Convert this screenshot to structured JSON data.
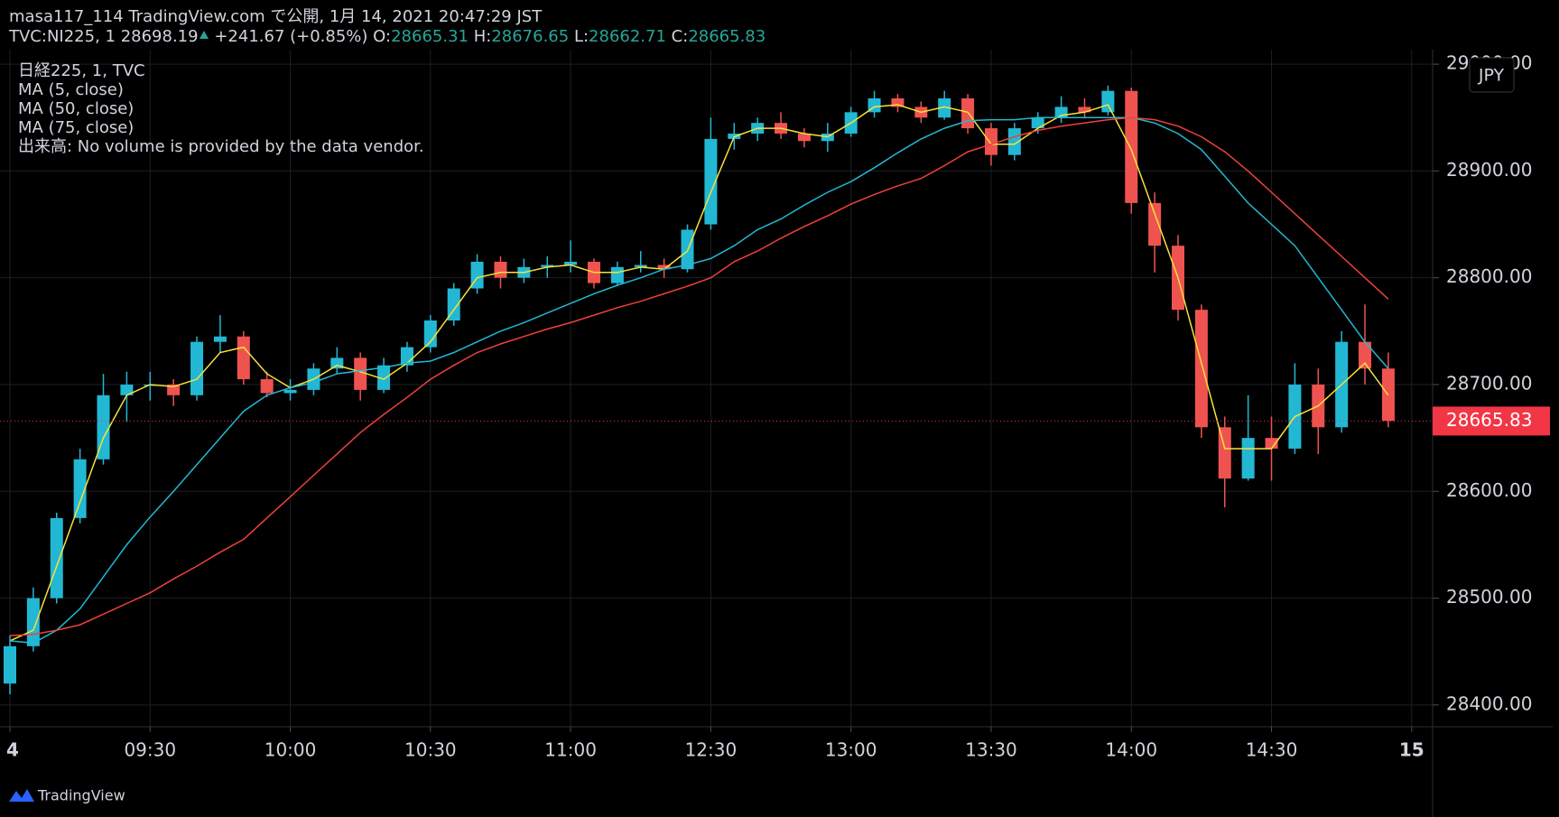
{
  "chart_data": {
    "type": "candlestick",
    "header": {
      "line1": "masa117_114 TradingView.com で公開, 1月 14, 2021 20:47:29 JST",
      "symbol": "TVC:NI225, 1",
      "price": 28698.19,
      "change": "+241.67 (+0.85%)",
      "ohlc_labels": [
        "O:",
        "H:",
        "L:",
        "C:"
      ],
      "ohlc_values": [
        28665.31,
        28676.65,
        28662.71,
        28665.83
      ]
    },
    "legend_title": "日経225, 1, TVC",
    "volume_note": "出来高: No volume is provided by the data vendor.",
    "up_color": "#22b8d4",
    "down_color": "#ef5350",
    "x": [
      "09:00",
      "09:05",
      "09:10",
      "09:15",
      "09:20",
      "09:25",
      "09:30",
      "09:35",
      "09:40",
      "09:45",
      "09:50",
      "09:55",
      "10:00",
      "10:05",
      "10:10",
      "10:15",
      "10:20",
      "10:25",
      "10:30",
      "10:35",
      "10:40",
      "10:45",
      "10:50",
      "10:55",
      "11:00",
      "11:05",
      "11:10",
      "11:15",
      "11:20",
      "11:25",
      "12:30",
      "12:35",
      "12:40",
      "12:45",
      "12:50",
      "12:55",
      "13:00",
      "13:05",
      "13:10",
      "13:15",
      "13:20",
      "13:25",
      "13:30",
      "13:35",
      "13:40",
      "13:45",
      "13:50",
      "13:55",
      "14:00",
      "14:05",
      "14:10",
      "14:15",
      "14:20",
      "14:25",
      "14:30",
      "14:35",
      "14:40",
      "14:45",
      "14:50",
      "14:55"
    ],
    "ohlc": [
      [
        28420,
        28465,
        28410,
        28455
      ],
      [
        28455,
        28510,
        28450,
        28500
      ],
      [
        28500,
        28580,
        28495,
        28575
      ],
      [
        28575,
        28640,
        28570,
        28630
      ],
      [
        28630,
        28710,
        28625,
        28690
      ],
      [
        28690,
        28712,
        28665,
        28700
      ],
      [
        28700,
        28712,
        28685,
        28700
      ],
      [
        28700,
        28705,
        28680,
        28690
      ],
      [
        28690,
        28745,
        28685,
        28740
      ],
      [
        28740,
        28765,
        28730,
        28745
      ],
      [
        28745,
        28750,
        28700,
        28705
      ],
      [
        28705,
        28712,
        28688,
        28692
      ],
      [
        28692,
        28705,
        28685,
        28695
      ],
      [
        28695,
        28720,
        28690,
        28715
      ],
      [
        28715,
        28735,
        28710,
        28725
      ],
      [
        28725,
        28730,
        28685,
        28695
      ],
      [
        28695,
        28725,
        28692,
        28718
      ],
      [
        28718,
        28740,
        28712,
        28735
      ],
      [
        28735,
        28765,
        28730,
        28760
      ],
      [
        28760,
        28795,
        28755,
        28790
      ],
      [
        28790,
        28822,
        28785,
        28815
      ],
      [
        28815,
        28820,
        28790,
        28800
      ],
      [
        28800,
        28818,
        28795,
        28810
      ],
      [
        28810,
        28820,
        28800,
        28812
      ],
      [
        28812,
        28835,
        28805,
        28815
      ],
      [
        28815,
        28818,
        28790,
        28795
      ],
      [
        28795,
        28815,
        28792,
        28810
      ],
      [
        28810,
        28825,
        28805,
        28812
      ],
      [
        28812,
        28818,
        28800,
        28808
      ],
      [
        28808,
        28850,
        28805,
        28845
      ],
      [
        28850,
        28950,
        28845,
        28930
      ],
      [
        28930,
        28945,
        28920,
        28935
      ],
      [
        28935,
        28950,
        28928,
        28945
      ],
      [
        28945,
        28955,
        28930,
        28935
      ],
      [
        28935,
        28940,
        28922,
        28928
      ],
      [
        28928,
        28945,
        28918,
        28935
      ],
      [
        28935,
        28960,
        28932,
        28955
      ],
      [
        28955,
        28975,
        28950,
        28968
      ],
      [
        28968,
        28972,
        28955,
        28960
      ],
      [
        28960,
        28965,
        28945,
        28950
      ],
      [
        28950,
        28975,
        28948,
        28968
      ],
      [
        28968,
        28972,
        28935,
        28940
      ],
      [
        28940,
        28945,
        28905,
        28915
      ],
      [
        28915,
        28945,
        28910,
        28940
      ],
      [
        28940,
        28955,
        28935,
        28950
      ],
      [
        28950,
        28970,
        28945,
        28960
      ],
      [
        28960,
        28968,
        28950,
        28955
      ],
      [
        28955,
        28980,
        28952,
        28975
      ],
      [
        28975,
        28978,
        28860,
        28870
      ],
      [
        28870,
        28880,
        28805,
        28830
      ],
      [
        28830,
        28840,
        28760,
        28770
      ],
      [
        28770,
        28775,
        28650,
        28660
      ],
      [
        28660,
        28670,
        28585,
        28612
      ],
      [
        28612,
        28690,
        28610,
        28650
      ],
      [
        28650,
        28670,
        28610,
        28640
      ],
      [
        28640,
        28720,
        28635,
        28700
      ],
      [
        28700,
        28715,
        28635,
        28660
      ],
      [
        28660,
        28750,
        28655,
        28740
      ],
      [
        28740,
        28775,
        28700,
        28715
      ],
      [
        28715,
        28730,
        28660,
        28666
      ]
    ],
    "series": [
      {
        "name": "MA (5, close)",
        "color": "#f7e13a",
        "values": [
          28460,
          28470,
          28530,
          28590,
          28650,
          28690,
          28700,
          28698,
          28705,
          28730,
          28735,
          28710,
          28697,
          28705,
          28718,
          28712,
          28705,
          28720,
          28740,
          28770,
          28800,
          28805,
          28805,
          28810,
          28812,
          28805,
          28805,
          28810,
          28808,
          28825,
          28880,
          28932,
          28940,
          28940,
          28935,
          28932,
          28945,
          28960,
          28962,
          28955,
          28960,
          28955,
          28925,
          28925,
          28940,
          28952,
          28955,
          28962,
          28920,
          28860,
          28800,
          28720,
          28640,
          28640,
          28640,
          28670,
          28680,
          28700,
          28720,
          28690
        ]
      },
      {
        "name": "MA (50, close)",
        "color": "#22b8d4",
        "values": [
          28460,
          28458,
          28470,
          28490,
          28520,
          28550,
          28576,
          28600,
          28625,
          28650,
          28675,
          28690,
          28697,
          28702,
          28710,
          28713,
          28716,
          28720,
          28722,
          28730,
          28740,
          28750,
          28758,
          28767,
          28776,
          28785,
          28793,
          28800,
          28808,
          28812,
          28818,
          28830,
          28845,
          28855,
          28868,
          28880,
          28890,
          28903,
          28917,
          28930,
          28940,
          28947,
          28948,
          28948,
          28950,
          28950,
          28950,
          28950,
          28950,
          28945,
          28935,
          28920,
          28895,
          28870,
          28850,
          28830,
          28800,
          28770,
          28740,
          28715
        ]
      },
      {
        "name": "MA (75, close)",
        "color": "#f0413a",
        "values": [
          28465,
          28466,
          28470,
          28475,
          28485,
          28495,
          28505,
          28518,
          28530,
          28543,
          28555,
          28575,
          28595,
          28615,
          28635,
          28655,
          28672,
          28688,
          28705,
          28718,
          28730,
          28738,
          28745,
          28752,
          28758,
          28765,
          28772,
          28778,
          28785,
          28792,
          28800,
          28815,
          28825,
          28837,
          28848,
          28858,
          28869,
          28878,
          28886,
          28893,
          28905,
          28918,
          28925,
          28932,
          28938,
          28942,
          28945,
          28948,
          28950,
          28948,
          28942,
          28932,
          28918,
          28900,
          28880,
          28860,
          28840,
          28820,
          28800,
          28780
        ]
      }
    ],
    "xticks": [
      {
        "value": "09:00",
        "label": "4"
      },
      "09:30",
      "10:00",
      "10:30",
      "11:00",
      "12:30",
      "13:00",
      "13:30",
      "14:00",
      "14:30",
      {
        "value": "15:00",
        "label": "15"
      }
    ],
    "ylim": [
      28379.6,
      29013.6
    ],
    "yticks": [
      {
        "value": 28400,
        "label": "28400.00"
      },
      {
        "value": 28500,
        "label": "28500.00"
      },
      {
        "value": 28600,
        "label": "28600.00"
      },
      {
        "value": 28700,
        "label": "28700.00"
      },
      {
        "value": 28800,
        "label": "28800.00"
      },
      {
        "value": 28900,
        "label": "28900.00"
      },
      {
        "value": 29000,
        "label": "29000.00"
      }
    ],
    "grid": true,
    "last_price": 28665.83,
    "last_price_color": "#f23645",
    "currency": "JPY",
    "footer": "TradingView"
  }
}
